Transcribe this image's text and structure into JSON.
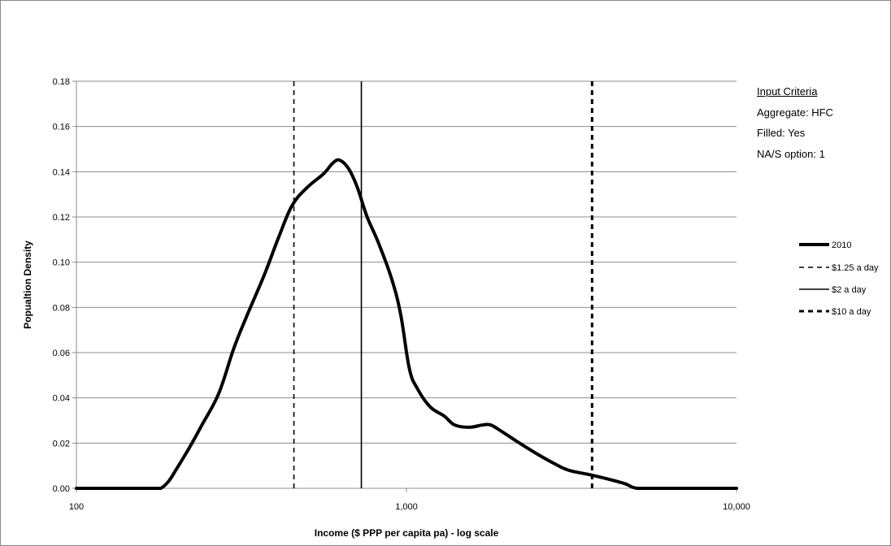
{
  "chart_data": {
    "type": "line",
    "title": "",
    "xlabel": "Income ($ PPP per capita pa) - log scale",
    "ylabel": "Popualtion Density",
    "x_scale": "log",
    "xlim": [
      100,
      10000
    ],
    "ylim": [
      0,
      0.18
    ],
    "x_ticks": [
      100,
      1000,
      10000
    ],
    "x_tick_labels": [
      "100",
      "1,000",
      "10,000"
    ],
    "y_ticks": [
      0,
      0.02,
      0.04,
      0.06,
      0.08,
      0.1,
      0.12,
      0.14,
      0.16,
      0.18
    ],
    "y_tick_labels": [
      "0.00",
      "0.02",
      "0.04",
      "0.06",
      "0.08",
      "0.10",
      "0.12",
      "0.14",
      "0.16",
      "0.18"
    ],
    "grid": "horizontal",
    "legend_position": "right",
    "series": [
      {
        "name": "2010",
        "style": "thick-solid",
        "color": "#000000",
        "points": [
          [
            100,
            0
          ],
          [
            150,
            0
          ],
          [
            170,
            0
          ],
          [
            180,
            0
          ],
          [
            190,
            0.003
          ],
          [
            200,
            0.008
          ],
          [
            220,
            0.018
          ],
          [
            240,
            0.028
          ],
          [
            270,
            0.042
          ],
          [
            300,
            0.062
          ],
          [
            330,
            0.077
          ],
          [
            370,
            0.094
          ],
          [
            410,
            0.111
          ],
          [
            450,
            0.125
          ],
          [
            500,
            0.133
          ],
          [
            560,
            0.139
          ],
          [
            600,
            0.144
          ],
          [
            630,
            0.145
          ],
          [
            670,
            0.141
          ],
          [
            710,
            0.133
          ],
          [
            760,
            0.12
          ],
          [
            820,
            0.109
          ],
          [
            900,
            0.093
          ],
          [
            960,
            0.077
          ],
          [
            1020,
            0.053
          ],
          [
            1080,
            0.044
          ],
          [
            1180,
            0.036
          ],
          [
            1300,
            0.032
          ],
          [
            1400,
            0.028
          ],
          [
            1550,
            0.027
          ],
          [
            1700,
            0.028
          ],
          [
            1800,
            0.028
          ],
          [
            1950,
            0.025
          ],
          [
            2200,
            0.02
          ],
          [
            2500,
            0.015
          ],
          [
            2800,
            0.011
          ],
          [
            3100,
            0.008
          ],
          [
            3600,
            0.006
          ],
          [
            4100,
            0.004
          ],
          [
            4600,
            0.002
          ],
          [
            5000,
            0.0
          ],
          [
            6000,
            0
          ],
          [
            7500,
            0
          ],
          [
            10000,
            0
          ]
        ]
      }
    ],
    "reference_lines": [
      {
        "name": "$1.25 a day",
        "x": 456,
        "style": "dashed",
        "color": "#000000"
      },
      {
        "name": "$2 a day",
        "x": 730,
        "style": "solid",
        "color": "#000000"
      },
      {
        "name": "$10 a day",
        "x": 3650,
        "style": "thick-dashed",
        "color": "#000000"
      }
    ]
  },
  "legend": {
    "items": [
      "2010",
      "$1.25 a day",
      "$2 a day",
      "$10 a day"
    ]
  },
  "criteria": {
    "heading": "Input Criteria",
    "lines": [
      "Aggregate: HFC",
      "Filled: Yes",
      "NA/S option: 1"
    ]
  }
}
